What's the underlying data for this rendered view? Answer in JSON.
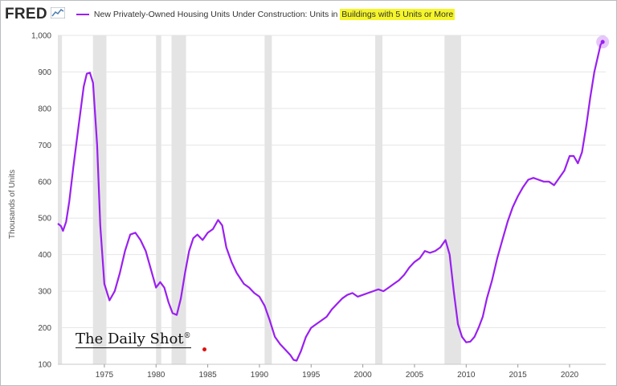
{
  "header": {
    "logo": "FRED",
    "series_prefix": "New Privately-Owned Housing Units Under Construction: Units in ",
    "series_highlight": "Buildings with 5 Units or More"
  },
  "watermark": {
    "text": "The Daily Shot",
    "mark": "®"
  },
  "colors": {
    "series": "#9a1ff0",
    "recession": "#e4e4e4",
    "grid": "#e6e6e6",
    "highlight": "#f5f52a"
  },
  "chart_data": {
    "type": "line",
    "title": "New Privately-Owned Housing Units Under Construction: Units in Buildings with 5 Units or More",
    "ylabel": "Thousands of Units",
    "xlabel": "",
    "xlim": [
      1970.5,
      2023.5
    ],
    "ylim": [
      100,
      1000
    ],
    "xticks": [
      1975,
      1980,
      1985,
      1990,
      1995,
      2000,
      2005,
      2010,
      2015,
      2020
    ],
    "yticks": [
      100,
      200,
      300,
      400,
      500,
      600,
      700,
      800,
      900,
      1000
    ],
    "ytick_labels": [
      "100",
      "200",
      "300",
      "400",
      "500",
      "600",
      "700",
      "800",
      "900",
      "1,000"
    ],
    "grid": true,
    "recessions": [
      [
        1970.0,
        1970.9
      ],
      [
        1973.9,
        1975.2
      ],
      [
        1980.0,
        1980.5
      ],
      [
        1981.5,
        1982.9
      ],
      [
        1990.5,
        1991.2
      ],
      [
        2001.2,
        2001.9
      ],
      [
        2007.9,
        2009.5
      ]
    ],
    "series": [
      {
        "x": [
          1970.5,
          1970.8,
          1971.0,
          1971.3,
          1971.6,
          1972.0,
          1972.5,
          1973.0,
          1973.3,
          1973.6,
          1973.9,
          1974.3,
          1974.6,
          1975.0,
          1975.5,
          1976.0,
          1976.5,
          1977.0,
          1977.5,
          1978.0,
          1978.5,
          1979.0,
          1979.5,
          1980.0,
          1980.4,
          1980.8,
          1981.2,
          1981.6,
          1982.0,
          1982.4,
          1982.8,
          1983.2,
          1983.6,
          1984.0,
          1984.5,
          1985.0,
          1985.5,
          1986.0,
          1986.4,
          1986.8,
          1987.3,
          1987.8,
          1988.5,
          1989.0,
          1989.5,
          1990.0,
          1990.5,
          1991.0,
          1991.5,
          1992.0,
          1992.5,
          1993.0,
          1993.3,
          1993.6,
          1994.0,
          1994.5,
          1995.0,
          1995.5,
          1996.0,
          1996.5,
          1997.0,
          1997.5,
          1998.0,
          1998.5,
          1999.0,
          1999.5,
          2000.0,
          2000.5,
          2001.0,
          2001.5,
          2002.0,
          2002.5,
          2003.0,
          2003.5,
          2004.0,
          2004.5,
          2005.0,
          2005.5,
          2006.0,
          2006.5,
          2007.0,
          2007.5,
          2008.0,
          2008.4,
          2008.8,
          2009.2,
          2009.6,
          2010.0,
          2010.4,
          2010.8,
          2011.2,
          2011.6,
          2012.0,
          2012.5,
          2013.0,
          2013.5,
          2014.0,
          2014.5,
          2015.0,
          2015.5,
          2016.0,
          2016.5,
          2017.0,
          2017.5,
          2018.0,
          2018.5,
          2019.0,
          2019.5,
          2020.0,
          2020.4,
          2020.8,
          2021.2,
          2021.6,
          2022.0,
          2022.4,
          2022.8,
          2023.0,
          2023.2
        ],
        "y": [
          485,
          478,
          465,
          490,
          545,
          640,
          750,
          860,
          895,
          898,
          870,
          700,
          480,
          320,
          275,
          300,
          350,
          410,
          455,
          460,
          440,
          410,
          360,
          310,
          325,
          310,
          270,
          240,
          235,
          280,
          350,
          410,
          445,
          455,
          440,
          460,
          470,
          495,
          480,
          420,
          380,
          350,
          320,
          310,
          295,
          285,
          260,
          220,
          175,
          155,
          140,
          125,
          112,
          110,
          135,
          175,
          200,
          210,
          220,
          230,
          250,
          265,
          280,
          290,
          295,
          285,
          290,
          295,
          300,
          305,
          300,
          310,
          320,
          330,
          345,
          365,
          380,
          390,
          410,
          405,
          410,
          420,
          440,
          400,
          300,
          210,
          175,
          160,
          162,
          175,
          200,
          230,
          280,
          330,
          390,
          440,
          490,
          530,
          560,
          585,
          605,
          610,
          605,
          600,
          600,
          590,
          610,
          630,
          670,
          670,
          650,
          680,
          750,
          830,
          900,
          950,
          975,
          982
        ]
      }
    ]
  }
}
